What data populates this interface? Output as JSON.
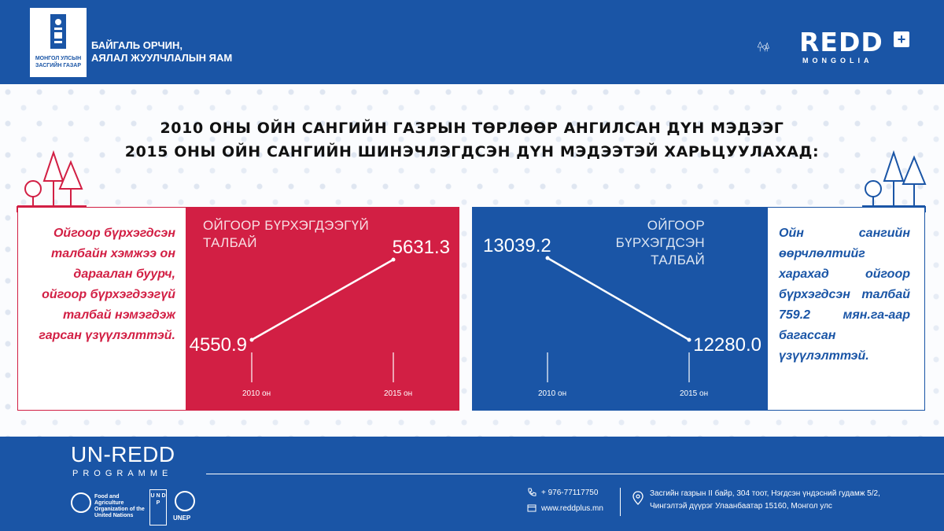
{
  "header": {
    "gov_logo_text": "МОНГОЛ УЛСЫН ЗАСГИЙН ГАЗАР",
    "ministry": "БАЙГАЛЬ ОРЧИН,\nАЯЛАЛ ЖУУЛЧЛАЛЫН ЯАМ",
    "redd_logo_main": "REDD",
    "redd_logo_plus": "+",
    "redd_logo_sub": "MONGOLIA"
  },
  "title": {
    "line1": "2010 ОНЫ ОЙН САНГИЙН ГАЗРЫН ТӨРЛӨӨР АНГИЛСАН ДҮН МЭДЭЭГ",
    "line2": "2015 ОНЫ ОЙН САНГИЙН ШИНЭЧЛЭГДСЭН ДҮН МЭДЭЭТЭЙ ХАРЬЦУУЛАХАД:"
  },
  "left_note": "Ойгоор бүрхэгдсэн талбайн хэмжээ он дараалан буурч, ойгоор бүрхэгдээгүй талбай нэмэгдэж гарсан үзүүлэлттэй.",
  "right_note": "Ойн сангийн өөрчлөлтийг харахад ойгоор бүрхэгдсэн талбай 759.2 мян.га-аар багассан үзүүлэлттэй.",
  "colors": {
    "red": "#d21f44",
    "blue": "#1a55a6"
  },
  "chart_data": [
    {
      "type": "line",
      "title": "ОЙГООР БҮРХЭГДЭЭГҮЙ ТАЛБАЙ",
      "title_lines": [
        "ОЙГООР БҮРХЭГДЭЭГҮЙ",
        "ТАЛБАЙ"
      ],
      "x": [
        "2010 он",
        "2015 он"
      ],
      "y": [
        4550.9,
        5631.3
      ],
      "labels": [
        "4550.9",
        "5631.3"
      ]
    },
    {
      "type": "line",
      "title": "ОЙГООР БҮРХЭГДСЭН ТАЛБАЙ",
      "title_lines": [
        "ОЙГООР БҮРХЭГДСЭН",
        "ТАЛБАЙ"
      ],
      "x": [
        "2010 он",
        "2015 он"
      ],
      "y": [
        13039.2,
        12280.0
      ],
      "labels": [
        "13039.2",
        "12280.0"
      ]
    }
  ],
  "footer": {
    "unredd": "UN-REDD",
    "programme": "PROGRAMME",
    "fao": "Food and Agriculture Organization of the United Nations",
    "undp": "U N D P",
    "unep": "UNEP",
    "phone": "+ 976-77117750",
    "website": "www.reddplus.mn",
    "address_line1": "Засгийн газрын II байр, 304 тоот, Нэгдсэн үндэсний гудамж 5/2,",
    "address_line2": "Чингэлтэй дүүрэг Улаанбаатар 15160, Монгол улс"
  }
}
